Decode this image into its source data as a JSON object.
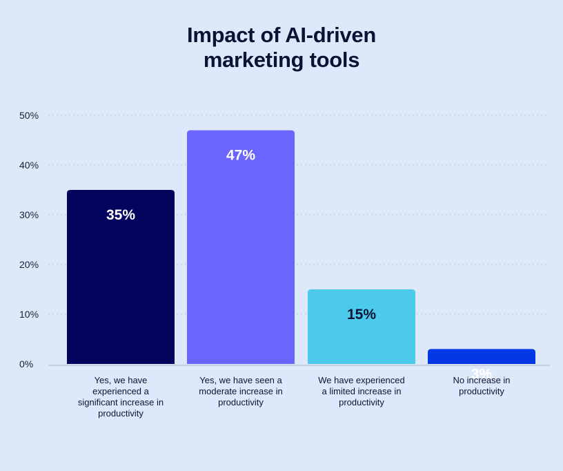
{
  "chart_data": {
    "type": "bar",
    "title_lines": [
      "Impact of AI-driven",
      "marketing tools"
    ],
    "categories": [
      "Yes, we have experienced a significant increase in productivity",
      "Yes, we have seen a moderate increase in productivity",
      "We have experienced a limited increase in productivity",
      "No increase in productivity"
    ],
    "values": [
      35,
      47,
      15,
      3
    ],
    "value_labels": [
      "35%",
      "47%",
      "15%",
      "3%"
    ],
    "bar_colors": [
      "#03045e",
      "#6a65ff",
      "#4ccaec",
      "#0437e6"
    ],
    "label_colors": [
      "#ffffff",
      "#ffffff",
      "#0b1233",
      "#ffffff"
    ],
    "ylim": [
      0,
      50
    ],
    "yticks": [
      0,
      10,
      20,
      30,
      40,
      50
    ],
    "ytick_labels": [
      "0%",
      "10%",
      "20%",
      "30%",
      "40%",
      "50%"
    ],
    "grid": true,
    "xlabel": "",
    "ylabel": ""
  }
}
